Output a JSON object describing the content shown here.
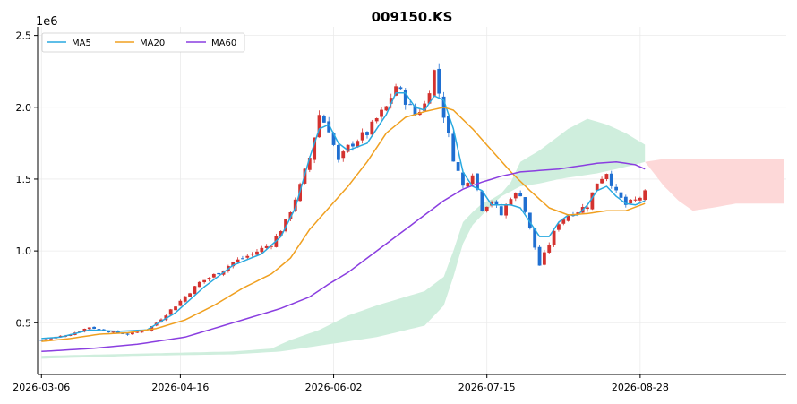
{
  "chart_data": {
    "type": "candlestick",
    "title": "009150.KS",
    "y_scale_label": "1e6",
    "y_ticks": [
      0.5,
      1.0,
      1.5,
      2.0,
      2.5
    ],
    "y_tick_labels": [
      "0.5",
      "1.0",
      "1.5",
      "2.0",
      "2.5"
    ],
    "x_tick_labels": [
      "2026-03-06",
      "2026-04-16",
      "2026-06-02",
      "2026-07-15",
      "2026-08-28"
    ],
    "x_tick_bars": [
      0,
      29,
      61,
      93,
      125
    ],
    "ylim": [
      0.14,
      2.56
    ],
    "xlim": [
      -0.8,
      155.5
    ],
    "grid": true,
    "legend": {
      "placement": "top-left",
      "entries": [
        "MA5",
        "MA20",
        "MA60"
      ]
    },
    "colors": {
      "up": "#d3322f",
      "down": "#1f6fd1",
      "MA5": "#29a9e0",
      "MA20": "#f0a020",
      "MA60": "#8a3ee0",
      "cloud_bull": "#cfeedd",
      "cloud_bear": "#fdd8d8"
    },
    "keypoints": {
      "close": [
        [
          0,
          0.38
        ],
        [
          6,
          0.42
        ],
        [
          10,
          0.47
        ],
        [
          14,
          0.44
        ],
        [
          18,
          0.42
        ],
        [
          22,
          0.45
        ],
        [
          24,
          0.5
        ],
        [
          28,
          0.62
        ],
        [
          33,
          0.78
        ],
        [
          37,
          0.85
        ],
        [
          40,
          0.92
        ],
        [
          44,
          0.98
        ],
        [
          48,
          1.05
        ],
        [
          51,
          1.2
        ],
        [
          54,
          1.45
        ],
        [
          56,
          1.65
        ],
        [
          58,
          1.95
        ],
        [
          60,
          1.85
        ],
        [
          62,
          1.62
        ],
        [
          64,
          1.72
        ],
        [
          66,
          1.78
        ],
        [
          68,
          1.82
        ],
        [
          70,
          1.92
        ],
        [
          72,
          2.0
        ],
        [
          74,
          2.15
        ],
        [
          76,
          2.05
        ],
        [
          78,
          1.95
        ],
        [
          80,
          2.02
        ],
        [
          82,
          2.25
        ],
        [
          84,
          1.95
        ],
        [
          86,
          1.65
        ],
        [
          88,
          1.45
        ],
        [
          90,
          1.55
        ],
        [
          92,
          1.3
        ],
        [
          94,
          1.35
        ],
        [
          96,
          1.25
        ],
        [
          98,
          1.38
        ],
        [
          100,
          1.4
        ],
        [
          102,
          1.15
        ],
        [
          104,
          0.9
        ],
        [
          106,
          1.05
        ],
        [
          108,
          1.2
        ],
        [
          110,
          1.25
        ],
        [
          112,
          1.28
        ],
        [
          114,
          1.32
        ],
        [
          116,
          1.48
        ],
        [
          118,
          1.55
        ],
        [
          120,
          1.4
        ],
        [
          122,
          1.32
        ],
        [
          124,
          1.35
        ],
        [
          126,
          1.4
        ]
      ],
      "ma5": [
        [
          0,
          0.39
        ],
        [
          4,
          0.4
        ],
        [
          10,
          0.45
        ],
        [
          16,
          0.44
        ],
        [
          22,
          0.45
        ],
        [
          28,
          0.57
        ],
        [
          34,
          0.75
        ],
        [
          40,
          0.9
        ],
        [
          46,
          0.98
        ],
        [
          50,
          1.1
        ],
        [
          53,
          1.3
        ],
        [
          56,
          1.65
        ],
        [
          58,
          1.85
        ],
        [
          60,
          1.88
        ],
        [
          62,
          1.75
        ],
        [
          64,
          1.7
        ],
        [
          68,
          1.75
        ],
        [
          72,
          1.95
        ],
        [
          74,
          2.1
        ],
        [
          76,
          2.1
        ],
        [
          78,
          2.0
        ],
        [
          80,
          1.98
        ],
        [
          82,
          2.08
        ],
        [
          84,
          2.05
        ],
        [
          86,
          1.85
        ],
        [
          88,
          1.55
        ],
        [
          90,
          1.45
        ],
        [
          92,
          1.42
        ],
        [
          94,
          1.32
        ],
        [
          98,
          1.32
        ],
        [
          100,
          1.3
        ],
        [
          102,
          1.2
        ],
        [
          104,
          1.1
        ],
        [
          106,
          1.1
        ],
        [
          108,
          1.2
        ],
        [
          110,
          1.25
        ],
        [
          112,
          1.25
        ],
        [
          114,
          1.32
        ],
        [
          116,
          1.42
        ],
        [
          118,
          1.45
        ],
        [
          120,
          1.38
        ],
        [
          122,
          1.33
        ],
        [
          124,
          1.32
        ],
        [
          126,
          1.35
        ]
      ],
      "ma20": [
        [
          0,
          0.37
        ],
        [
          6,
          0.39
        ],
        [
          12,
          0.42
        ],
        [
          18,
          0.43
        ],
        [
          24,
          0.46
        ],
        [
          30,
          0.52
        ],
        [
          36,
          0.62
        ],
        [
          42,
          0.74
        ],
        [
          48,
          0.84
        ],
        [
          52,
          0.95
        ],
        [
          56,
          1.15
        ],
        [
          60,
          1.3
        ],
        [
          64,
          1.45
        ],
        [
          68,
          1.62
        ],
        [
          72,
          1.82
        ],
        [
          76,
          1.93
        ],
        [
          80,
          1.97
        ],
        [
          84,
          2.0
        ],
        [
          86,
          1.98
        ],
        [
          90,
          1.85
        ],
        [
          94,
          1.7
        ],
        [
          98,
          1.55
        ],
        [
          102,
          1.42
        ],
        [
          106,
          1.3
        ],
        [
          110,
          1.25
        ],
        [
          114,
          1.26
        ],
        [
          118,
          1.28
        ],
        [
          122,
          1.28
        ],
        [
          126,
          1.33
        ]
      ],
      "ma60": [
        [
          0,
          0.3
        ],
        [
          10,
          0.32
        ],
        [
          20,
          0.35
        ],
        [
          30,
          0.4
        ],
        [
          40,
          0.5
        ],
        [
          50,
          0.6
        ],
        [
          56,
          0.68
        ],
        [
          60,
          0.77
        ],
        [
          64,
          0.85
        ],
        [
          68,
          0.95
        ],
        [
          72,
          1.05
        ],
        [
          76,
          1.15
        ],
        [
          80,
          1.25
        ],
        [
          84,
          1.35
        ],
        [
          88,
          1.43
        ],
        [
          92,
          1.48
        ],
        [
          96,
          1.52
        ],
        [
          100,
          1.55
        ],
        [
          104,
          1.56
        ],
        [
          108,
          1.57
        ],
        [
          112,
          1.59
        ],
        [
          116,
          1.61
        ],
        [
          120,
          1.62
        ],
        [
          124,
          1.6
        ],
        [
          126,
          1.57
        ]
      ],
      "cloud_bull_top": [
        [
          0,
          0.27
        ],
        [
          40,
          0.3
        ],
        [
          48,
          0.32
        ],
        [
          52,
          0.38
        ],
        [
          58,
          0.45
        ],
        [
          64,
          0.55
        ],
        [
          70,
          0.62
        ],
        [
          76,
          0.68
        ],
        [
          80,
          0.72
        ],
        [
          84,
          0.82
        ],
        [
          86,
          1.0
        ],
        [
          88,
          1.2
        ],
        [
          90,
          1.27
        ],
        [
          92,
          1.33
        ],
        [
          94,
          1.36
        ],
        [
          96,
          1.4
        ],
        [
          98,
          1.48
        ],
        [
          100,
          1.62
        ],
        [
          104,
          1.7
        ],
        [
          108,
          1.8
        ],
        [
          110,
          1.85
        ],
        [
          114,
          1.92
        ],
        [
          118,
          1.88
        ],
        [
          122,
          1.82
        ],
        [
          124,
          1.78
        ],
        [
          126,
          1.74
        ]
      ],
      "cloud_bull_bottom": [
        [
          0,
          0.25
        ],
        [
          20,
          0.27
        ],
        [
          40,
          0.28
        ],
        [
          50,
          0.3
        ],
        [
          60,
          0.35
        ],
        [
          70,
          0.4
        ],
        [
          80,
          0.48
        ],
        [
          84,
          0.62
        ],
        [
          86,
          0.82
        ],
        [
          88,
          1.05
        ],
        [
          90,
          1.18
        ],
        [
          92,
          1.25
        ],
        [
          96,
          1.38
        ],
        [
          100,
          1.45
        ],
        [
          104,
          1.47
        ],
        [
          108,
          1.5
        ],
        [
          112,
          1.52
        ],
        [
          116,
          1.54
        ],
        [
          120,
          1.57
        ],
        [
          124,
          1.6
        ],
        [
          126,
          1.62
        ]
      ],
      "cloud_bear_top": [
        [
          126,
          1.62
        ],
        [
          130,
          1.64
        ],
        [
          140,
          1.64
        ],
        [
          155,
          1.64
        ]
      ],
      "cloud_bear_bottom": [
        [
          126,
          1.62
        ],
        [
          130,
          1.45
        ],
        [
          133,
          1.35
        ],
        [
          136,
          1.28
        ],
        [
          140,
          1.3
        ],
        [
          145,
          1.33
        ],
        [
          150,
          1.33
        ],
        [
          155,
          1.33
        ]
      ]
    }
  }
}
